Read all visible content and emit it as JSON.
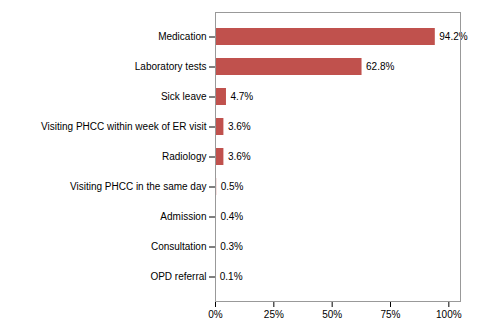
{
  "chart_data": {
    "type": "bar",
    "orientation": "horizontal",
    "categories": [
      "OPD referral",
      "Consultation",
      "Admission",
      "Visiting PHCC in the same day",
      "Radiology",
      "Visiting PHCC within week of ER visit",
      "Sick leave",
      "Laboratory tests",
      "Medication"
    ],
    "values": [
      0.1,
      0.3,
      0.4,
      0.5,
      3.6,
      3.6,
      4.7,
      62.8,
      94.2
    ],
    "value_labels": [
      "0.1%",
      "0.3%",
      "0.4%",
      "0.5%",
      "3.6%",
      "3.6%",
      "4.7%",
      "62.8%",
      "94.2%"
    ],
    "data_labels": true,
    "color": "#c0514d",
    "xlim": [
      0,
      105
    ],
    "xticks": [
      {
        "value": 0,
        "label": "0%"
      },
      {
        "value": 25,
        "label": "25%"
      },
      {
        "value": 50,
        "label": "50%"
      },
      {
        "value": 75,
        "label": "75%"
      },
      {
        "value": 100,
        "label": "100%"
      }
    ],
    "grid": false
  }
}
